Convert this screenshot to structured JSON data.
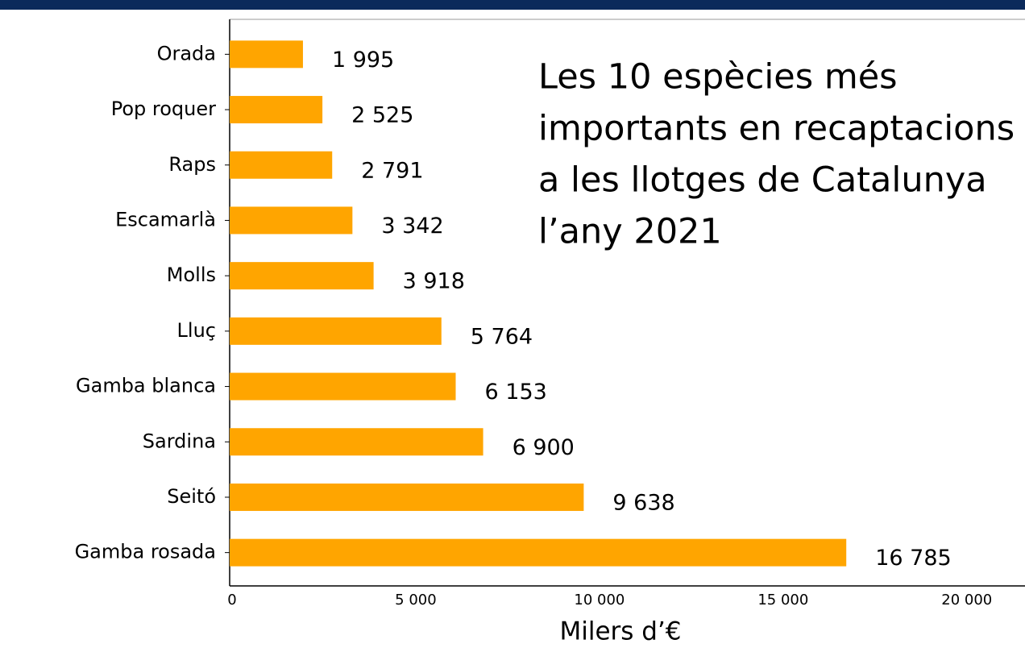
{
  "chart_data": {
    "type": "hbar",
    "title": [
      "Les 10 espècies més",
      "importants en recaptacions",
      "a les llotges de Catalunya",
      "l’any 2021"
    ],
    "x_label": "Milers d’€",
    "categories": [
      "Orada",
      "Pop roquer",
      "Raps",
      "Escamarlà",
      "Molls",
      "Lluç",
      "Gamba blanca",
      "Sardina",
      "Seitó",
      "Gamba rosada"
    ],
    "values": [
      1995,
      2525,
      2791,
      3342,
      3918,
      5764,
      6153,
      6900,
      9638,
      16785
    ],
    "value_labels": [
      "1 995",
      "2 525",
      "2 791",
      "3 342",
      "3 918",
      "5 764",
      "6 153",
      "6 900",
      "9 638",
      "16 785"
    ],
    "color": "#ffa500",
    "xlim": [
      0,
      21650
    ],
    "xticks": [
      0,
      {
        "value": 5000,
        "label": "5 000"
      },
      {
        "value": 10000,
        "label": "10 000"
      },
      {
        "value": 15000,
        "label": "15 000"
      },
      {
        "value": 20000,
        "label": "20 000"
      }
    ]
  }
}
